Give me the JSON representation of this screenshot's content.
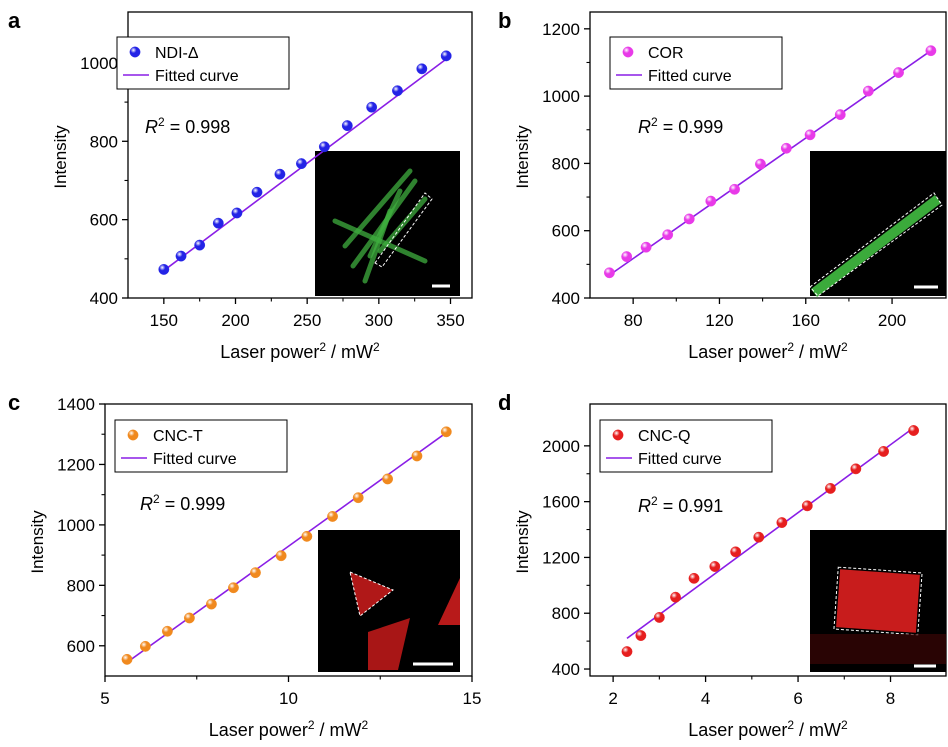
{
  "chart_data": [
    {
      "type": "scatter",
      "panel_label": "a",
      "xlabel": "Laser power",
      "xlabel_sup": "2",
      "xlabel_unit": " / mW",
      "xlabel_unit_sup": "2",
      "ylabel": "Intensity",
      "xlim": [
        125,
        365
      ],
      "ylim": [
        400,
        1130
      ],
      "xticks": [
        150,
        200,
        250,
        300,
        350
      ],
      "yticks": [
        400,
        600,
        800,
        1000
      ],
      "point_color": "#2323e6",
      "label_color": "#2323e6",
      "fit_color": "#8a1ee6",
      "legend_marker": "NDI-Δ",
      "legend_fit": "Fitted curve",
      "r2_text": "= 0.998",
      "r2_symbol": "R",
      "r2_sup": "2",
      "inset": "green-rods",
      "x": [
        150,
        162,
        175,
        188,
        201,
        215,
        231,
        246,
        262,
        278,
        295,
        313,
        330,
        347
      ],
      "y": [
        473,
        507,
        535,
        591,
        617,
        670,
        716,
        743,
        786,
        840,
        887,
        929,
        985,
        1018
      ],
      "fit": [
        [
          150,
          470
        ],
        [
          350,
          1018
        ]
      ]
    },
    {
      "type": "scatter",
      "panel_label": "b",
      "xlabel": "Laser power",
      "xlabel_sup": "2",
      "xlabel_unit": " / mW",
      "xlabel_unit_sup": "2",
      "ylabel": "Intensity",
      "xlim": [
        60,
        225
      ],
      "ylim": [
        400,
        1250
      ],
      "xticks": [
        80,
        120,
        160,
        200
      ],
      "yticks": [
        400,
        600,
        800,
        1000,
        1200
      ],
      "point_color": "#e83ae8",
      "label_color": "#e83ae8",
      "fit_color": "#8a1ee6",
      "legend_marker": "COR",
      "legend_fit": "Fitted curve",
      "r2_text": "= 0.999",
      "r2_symbol": "R",
      "r2_sup": "2",
      "inset": "green-rod",
      "x": [
        69,
        77,
        86,
        96,
        106,
        116,
        127,
        139,
        151,
        162,
        176,
        189,
        203,
        218
      ],
      "y": [
        475,
        523,
        551,
        588,
        635,
        688,
        723,
        798,
        845,
        885,
        945,
        1015,
        1070,
        1135
      ],
      "fit": [
        [
          69,
          468
        ],
        [
          218,
          1135
        ]
      ]
    },
    {
      "type": "scatter",
      "panel_label": "c",
      "xlabel": "Laser power",
      "xlabel_sup": "2",
      "xlabel_unit": " / mW",
      "xlabel_unit_sup": "2",
      "ylabel": "Intensity",
      "xlim": [
        5,
        15
      ],
      "ylim": [
        500,
        1400
      ],
      "xticks": [
        5,
        10,
        15
      ],
      "yticks": [
        600,
        800,
        1000,
        1200,
        1400
      ],
      "point_color": "#f0891e",
      "label_color": "#f0891e",
      "fit_color": "#8a1ee6",
      "legend_marker": "CNC-T",
      "legend_fit": "Fitted curve",
      "r2_text": "= 0.999",
      "r2_symbol": "R",
      "r2_sup": "2",
      "inset": "red-triangles",
      "x": [
        5.6,
        6.1,
        6.7,
        7.3,
        7.9,
        8.5,
        9.1,
        9.8,
        10.5,
        11.2,
        11.9,
        12.7,
        13.5,
        14.3
      ],
      "y": [
        555,
        598,
        648,
        692,
        738,
        792,
        842,
        898,
        962,
        1028,
        1090,
        1152,
        1228,
        1308
      ],
      "fit": [
        [
          5.6,
          545
        ],
        [
          14.3,
          1305
        ]
      ]
    },
    {
      "type": "scatter",
      "panel_label": "d",
      "xlabel": "Laser power",
      "xlabel_sup": "2",
      "xlabel_unit": " / mW",
      "xlabel_unit_sup": "2",
      "ylabel": "Intensity",
      "xlim": [
        1.5,
        9.2
      ],
      "ylim": [
        350,
        2300
      ],
      "xticks": [
        2,
        4,
        6,
        8
      ],
      "yticks": [
        400,
        800,
        1200,
        1600,
        2000
      ],
      "point_color": "#e61e1e",
      "label_color": "#e61e1e",
      "fit_color": "#8a1ee6",
      "legend_marker": "CNC-Q",
      "legend_fit": "Fitted curve",
      "r2_text": "= 0.991",
      "r2_symbol": "R",
      "r2_sup": "2",
      "inset": "red-rectangle",
      "x": [
        2.3,
        2.6,
        3.0,
        3.35,
        3.75,
        4.2,
        4.65,
        5.15,
        5.65,
        6.2,
        6.7,
        7.25,
        7.85,
        8.5
      ],
      "y": [
        525,
        640,
        770,
        915,
        1050,
        1135,
        1240,
        1345,
        1450,
        1570,
        1695,
        1835,
        1960,
        2110
      ],
      "fit": [
        [
          2.3,
          620
        ],
        [
          8.5,
          2130
        ]
      ]
    }
  ]
}
